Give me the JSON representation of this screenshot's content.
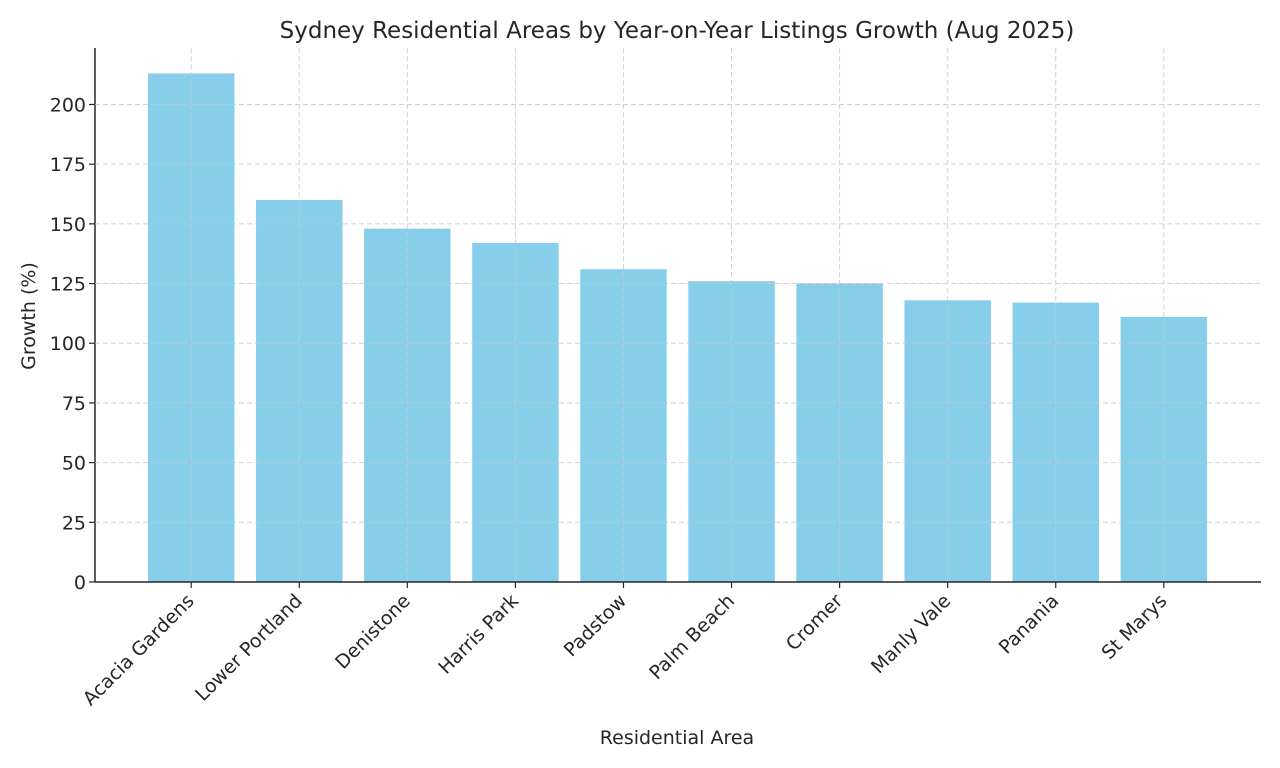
{
  "chart_data": {
    "type": "bar",
    "title": "Sydney Residential Areas by Year-on-Year Listings Growth (Aug 2025)",
    "xlabel": "Residential Area",
    "ylabel": "Growth (%)",
    "categories": [
      "Acacia Gardens",
      "Lower Portland",
      "Denistone",
      "Harris Park",
      "Padstow",
      "Palm Beach",
      "Cromer",
      "Manly Vale",
      "Panania",
      "St Marys"
    ],
    "values": [
      213,
      160,
      148,
      142,
      131,
      126,
      125,
      118,
      117,
      111
    ],
    "ylim": [
      0,
      223.65
    ],
    "yticks": [
      0,
      25,
      50,
      75,
      100,
      125,
      150,
      175,
      200
    ],
    "grid": true,
    "bar_color": "#87CEEB",
    "legend": "none"
  }
}
